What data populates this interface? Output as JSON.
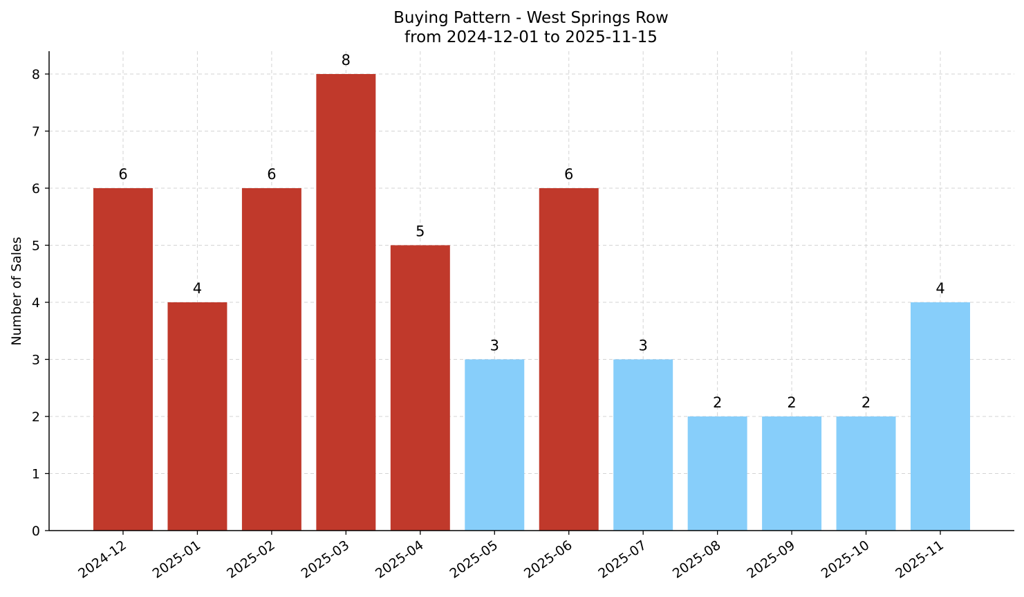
{
  "chart_data": {
    "type": "bar",
    "title_line1": "Buying Pattern - West Springs Row",
    "title_line2": "from 2024-12-01 to 2025-11-15",
    "xlabel": "",
    "ylabel": "Number of Sales",
    "categories": [
      "2024-12",
      "2025-01",
      "2025-02",
      "2025-03",
      "2025-04",
      "2025-05",
      "2025-06",
      "2025-07",
      "2025-08",
      "2025-09",
      "2025-10",
      "2025-11"
    ],
    "values": [
      6,
      4,
      6,
      8,
      5,
      3,
      6,
      3,
      2,
      2,
      2,
      4
    ],
    "bar_colors": [
      "#c0392b",
      "#c0392b",
      "#c0392b",
      "#c0392b",
      "#c0392b",
      "#87cefa",
      "#c0392b",
      "#87cefa",
      "#87cefa",
      "#87cefa",
      "#87cefa",
      "#87cefa"
    ],
    "ylim": [
      0,
      8.4
    ],
    "yticks": [
      0,
      1,
      2,
      3,
      4,
      5,
      6,
      7,
      8
    ],
    "grid": true,
    "legend": "none"
  }
}
